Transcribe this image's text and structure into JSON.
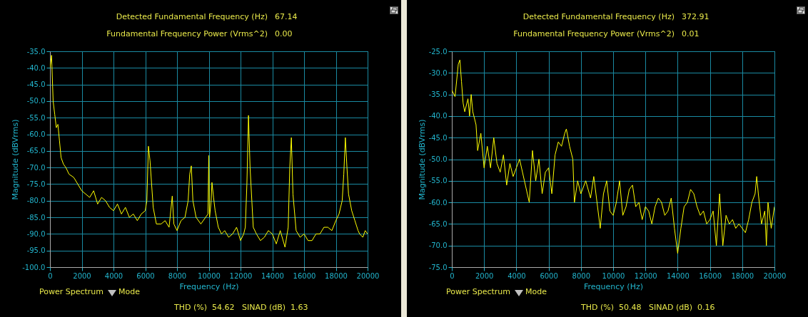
{
  "chart_data": [
    {
      "type": "line",
      "xlabel": "Frequency (Hz)",
      "ylabel": "Magnitude (dBVrms)",
      "grid": true,
      "annotations": [
        "Detected Fundamental Frequency (Hz)",
        "67.14",
        "Fundamental Frequency Power (Vrms^2)",
        "0.00",
        "Power Spectrum",
        "Mode",
        "THD (%)",
        "54.62",
        "SINAD (dB)",
        "1.63"
      ],
      "xlim": [
        0,
        20000
      ],
      "xticks": [
        0,
        2000,
        4000,
        6000,
        8000,
        10000,
        12000,
        14000,
        16000,
        18000,
        20000
      ],
      "ylim": [
        -100,
        -35
      ],
      "yticks": [
        {
          "value": -35,
          "label": "-35.0"
        },
        {
          "value": -40,
          "label": "-40.0"
        },
        {
          "value": -45,
          "label": "-45.0"
        },
        {
          "value": -50,
          "label": "-50.0"
        },
        {
          "value": -55,
          "label": "-55.0"
        },
        {
          "value": -60,
          "label": "-60.0"
        },
        {
          "value": -65,
          "label": "-65.0"
        },
        {
          "value": -70,
          "label": "-70.0"
        },
        {
          "value": -75,
          "label": "-75.0"
        },
        {
          "value": -80,
          "label": "-80.0"
        },
        {
          "value": -85,
          "label": "-85.0"
        },
        {
          "value": -90,
          "label": "-90.0"
        },
        {
          "value": -95,
          "label": "-95.0"
        },
        {
          "value": -100,
          "label": "-100.0"
        }
      ],
      "x": [
        0,
        100,
        200,
        300,
        400,
        500,
        600,
        700,
        850,
        1000,
        1200,
        1500,
        1750,
        2000,
        2250,
        2500,
        2750,
        3000,
        3250,
        3500,
        3750,
        4000,
        4250,
        4500,
        4750,
        5000,
        5250,
        5500,
        5750,
        6000,
        6100,
        6200,
        6300,
        6500,
        6700,
        7000,
        7250,
        7500,
        7700,
        7800,
        8000,
        8250,
        8500,
        8700,
        8800,
        8900,
        9000,
        9200,
        9500,
        9800,
        9950,
        10000,
        10050,
        10150,
        10200,
        10300,
        10400,
        10600,
        10800,
        11000,
        11250,
        11500,
        11750,
        12000,
        12200,
        12300,
        12400,
        12500,
        12600,
        12800,
        13000,
        13250,
        13500,
        13750,
        14000,
        14250,
        14500,
        14800,
        15000,
        15100,
        15200,
        15300,
        15500,
        15750,
        16000,
        16250,
        16500,
        16750,
        17000,
        17250,
        17500,
        17750,
        18000,
        18200,
        18400,
        18500,
        18600,
        18700,
        18800,
        19000,
        19200,
        19400,
        19500,
        19700,
        19850,
        20000
      ],
      "series": [
        {
          "color": "#ffff00",
          "values": [
            -40,
            -36.2,
            -50,
            -54,
            -58,
            -57,
            -62,
            -67,
            -69,
            -70,
            -72,
            -73,
            -75,
            -77,
            -78,
            -79,
            -77,
            -81,
            -79,
            -80,
            -82,
            -83,
            -81,
            -84,
            -82,
            -85,
            -84,
            -86,
            -84,
            -83,
            -80,
            -63.6,
            -68,
            -82,
            -87,
            -87,
            -86,
            -88,
            -78.6,
            -87,
            -89,
            -86,
            -85,
            -80,
            -72,
            -69.5,
            -80,
            -85,
            -87,
            -85,
            -84,
            -66.4,
            -85,
            -80,
            -74.5,
            -79,
            -83,
            -88,
            -90,
            -89,
            -91,
            -90,
            -88,
            -92,
            -90,
            -88,
            -75,
            -54.3,
            -70,
            -88,
            -90,
            -92,
            -91,
            -89,
            -90,
            -93,
            -89,
            -94,
            -88,
            -70,
            -61,
            -78,
            -89,
            -91,
            -90,
            -92,
            -92,
            -90,
            -90,
            -88,
            -88,
            -89,
            -86,
            -84,
            -80,
            -72,
            -61,
            -70,
            -78,
            -83,
            -86,
            -89,
            -90,
            -91,
            -89,
            -90
          ]
        }
      ]
    },
    {
      "type": "line",
      "xlabel": "Frequency (Hz)",
      "ylabel": "Magnitude (dBVrms)",
      "grid": true,
      "annotations": [
        "Detected Fundamental Frequency (Hz)",
        "372.91",
        "Fundamental Frequency Power (Vrms^2)",
        "0.01",
        "Power Spectrum",
        "Mode",
        "THD (%)",
        "50.48",
        "SINAD (dB)",
        "0.16"
      ],
      "xlim": [
        0,
        20000
      ],
      "xticks": [
        0,
        2000,
        4000,
        6000,
        8000,
        10000,
        12000,
        14000,
        16000,
        18000,
        20000
      ],
      "ylim": [
        -75,
        -25
      ],
      "yticks": [
        {
          "value": -25,
          "label": "-25.0"
        },
        {
          "value": -30,
          "label": "-30.0"
        },
        {
          "value": -35,
          "label": "-35.0"
        },
        {
          "value": -40,
          "label": "-40.0"
        },
        {
          "value": -45,
          "label": "-45.0"
        },
        {
          "value": -50,
          "label": "-50.0"
        },
        {
          "value": -55,
          "label": "-55.0"
        },
        {
          "value": -60,
          "label": "-60.0"
        },
        {
          "value": -65,
          "label": "-65.0"
        },
        {
          "value": -70,
          "label": "-70.0"
        },
        {
          "value": -75,
          "label": "-75.0"
        }
      ],
      "x": [
        0,
        200,
        400,
        500,
        600,
        700,
        800,
        1000,
        1100,
        1200,
        1300,
        1500,
        1600,
        1800,
        2000,
        2200,
        2400,
        2600,
        2800,
        3000,
        3200,
        3400,
        3600,
        3800,
        4000,
        4200,
        4500,
        4800,
        5000,
        5200,
        5400,
        5600,
        5800,
        6000,
        6200,
        6400,
        6600,
        6800,
        7000,
        7100,
        7300,
        7500,
        7600,
        7800,
        8000,
        8300,
        8600,
        8800,
        9000,
        9200,
        9400,
        9600,
        9800,
        10000,
        10200,
        10400,
        10600,
        10800,
        11000,
        11200,
        11400,
        11600,
        11800,
        12000,
        12200,
        12400,
        12600,
        12800,
        13000,
        13200,
        13400,
        13600,
        13800,
        14000,
        14200,
        14400,
        14600,
        14800,
        15000,
        15200,
        15400,
        15600,
        15800,
        16000,
        16200,
        16400,
        16600,
        16800,
        17000,
        17200,
        17400,
        17600,
        17800,
        18000,
        18200,
        18400,
        18600,
        18800,
        18900,
        19000,
        19200,
        19400,
        19500,
        19600,
        19800,
        20000
      ],
      "series": [
        {
          "color": "#ffff00",
          "values": [
            -34,
            -35.5,
            -28,
            -27,
            -32,
            -37,
            -39,
            -36,
            -40,
            -35,
            -39,
            -42,
            -48,
            -44,
            -52,
            -47,
            -52,
            -45,
            -51,
            -53,
            -49,
            -56,
            -51,
            -54,
            -52,
            -50,
            -55,
            -60,
            -48,
            -55,
            -50,
            -58,
            -53,
            -52,
            -58,
            -49,
            -46,
            -47,
            -44,
            -43,
            -47,
            -50,
            -60,
            -55,
            -58,
            -55,
            -59,
            -54,
            -60,
            -66,
            -58,
            -55,
            -62,
            -63,
            -60,
            -55,
            -63,
            -61,
            -57,
            -56,
            -61,
            -60,
            -64,
            -61,
            -62,
            -65,
            -61,
            -59,
            -60,
            -63,
            -62,
            -59,
            -66,
            -71.8,
            -66,
            -61,
            -60,
            -57,
            -58,
            -61,
            -63,
            -62,
            -65,
            -64,
            -62,
            -70,
            -58,
            -70,
            -63,
            -65,
            -64,
            -66,
            -65,
            -66,
            -67,
            -64,
            -60,
            -58,
            -54,
            -58,
            -65,
            -62,
            -70,
            -60,
            -66,
            -61
          ]
        }
      ]
    }
  ]
}
